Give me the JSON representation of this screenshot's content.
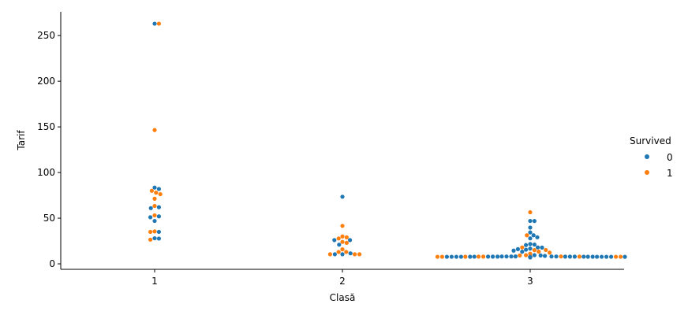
{
  "chart_data": {
    "type": "scatter",
    "style": "swarm",
    "xlabel": "Clasă",
    "ylabel": "Tarif",
    "categories": [
      "1",
      "2",
      "3"
    ],
    "ylim": [
      -6,
      276
    ],
    "yticks": [
      "0",
      "50",
      "100",
      "150",
      "200",
      "250"
    ],
    "ytick_values": [
      0,
      50,
      100,
      150,
      200,
      250
    ],
    "grid": false,
    "legend": {
      "title": "Survived",
      "placement": "right",
      "entries": [
        {
          "label": "0",
          "color": "#1f77b4"
        },
        {
          "label": "1",
          "color": "#ff7f0e"
        }
      ]
    },
    "series": [
      {
        "name": "0",
        "color": "#1f77b4",
        "points": [
          {
            "x": "1",
            "y": 263
          },
          {
            "x": "1",
            "y": 83.5
          },
          {
            "x": "1",
            "y": 82
          },
          {
            "x": "1",
            "y": 62
          },
          {
            "x": "1",
            "y": 61
          },
          {
            "x": "1",
            "y": 52
          },
          {
            "x": "1",
            "y": 51
          },
          {
            "x": "1",
            "y": 47
          },
          {
            "x": "1",
            "y": 35
          },
          {
            "x": "1",
            "y": 28
          },
          {
            "x": "1",
            "y": 27.7
          },
          {
            "x": "2",
            "y": 73.5
          },
          {
            "x": "2",
            "y": 26
          },
          {
            "x": "2",
            "y": 26
          },
          {
            "x": "2",
            "y": 21
          },
          {
            "x": "2",
            "y": 11.5
          },
          {
            "x": "2",
            "y": 10.5
          },
          {
            "x": "2",
            "y": 10.5
          },
          {
            "x": "3",
            "y": 47
          },
          {
            "x": "3",
            "y": 46.9
          },
          {
            "x": "3",
            "y": 39.7
          },
          {
            "x": "3",
            "y": 34.4
          },
          {
            "x": "3",
            "y": 31.3
          },
          {
            "x": "3",
            "y": 29.1
          },
          {
            "x": "3",
            "y": 27.9
          },
          {
            "x": "3",
            "y": 21.7
          },
          {
            "x": "3",
            "y": 21.1
          },
          {
            "x": "3",
            "y": 20.6
          },
          {
            "x": "3",
            "y": 18
          },
          {
            "x": "3",
            "y": 17.8
          },
          {
            "x": "3",
            "y": 16.7
          },
          {
            "x": "3",
            "y": 16.1
          },
          {
            "x": "3",
            "y": 15.5
          },
          {
            "x": "3",
            "y": 14.5
          },
          {
            "x": "3",
            "y": 13.3
          },
          {
            "x": "3",
            "y": 9.5
          },
          {
            "x": "3",
            "y": 9.2
          },
          {
            "x": "3",
            "y": 8.7
          },
          {
            "x": "3",
            "y": 8.1
          },
          {
            "x": "3",
            "y": 8.05
          },
          {
            "x": "3",
            "y": 8.05
          },
          {
            "x": "3",
            "y": 8.05
          },
          {
            "x": "3",
            "y": 8.05
          },
          {
            "x": "3",
            "y": 8.05
          },
          {
            "x": "3",
            "y": 7.9
          },
          {
            "x": "3",
            "y": 7.9
          },
          {
            "x": "3",
            "y": 7.9
          },
          {
            "x": "3",
            "y": 7.9
          },
          {
            "x": "3",
            "y": 7.9
          },
          {
            "x": "3",
            "y": 7.9
          },
          {
            "x": "3",
            "y": 7.85
          },
          {
            "x": "3",
            "y": 7.85
          },
          {
            "x": "3",
            "y": 7.8
          },
          {
            "x": "3",
            "y": 7.8
          },
          {
            "x": "3",
            "y": 7.8
          },
          {
            "x": "3",
            "y": 7.75
          },
          {
            "x": "3",
            "y": 7.75
          },
          {
            "x": "3",
            "y": 7.75
          },
          {
            "x": "3",
            "y": 7.75
          },
          {
            "x": "3",
            "y": 7.75
          },
          {
            "x": "3",
            "y": 7.75
          },
          {
            "x": "3",
            "y": 7.75
          },
          {
            "x": "3",
            "y": 7.75
          },
          {
            "x": "3",
            "y": 7.7
          },
          {
            "x": "3",
            "y": 7.7
          },
          {
            "x": "3",
            "y": 7.7
          },
          {
            "x": "3",
            "y": 7.65
          },
          {
            "x": "3",
            "y": 7.65
          },
          {
            "x": "3",
            "y": 7.6
          },
          {
            "x": "3",
            "y": 7.6
          },
          {
            "x": "3",
            "y": 7.55
          },
          {
            "x": "3",
            "y": 7.5
          },
          {
            "x": "3",
            "y": 7.5
          },
          {
            "x": "3",
            "y": 7.25
          },
          {
            "x": "3",
            "y": 7.25
          },
          {
            "x": "3",
            "y": 7.22
          },
          {
            "x": "3",
            "y": 7.05
          }
        ]
      },
      {
        "name": "1",
        "color": "#ff7f0e",
        "points": [
          {
            "x": "1",
            "y": 263
          },
          {
            "x": "1",
            "y": 146.5
          },
          {
            "x": "1",
            "y": 80
          },
          {
            "x": "1",
            "y": 78
          },
          {
            "x": "1",
            "y": 76.3
          },
          {
            "x": "1",
            "y": 71.3
          },
          {
            "x": "1",
            "y": 63.4
          },
          {
            "x": "1",
            "y": 53.1
          },
          {
            "x": "1",
            "y": 35.5
          },
          {
            "x": "1",
            "y": 35
          },
          {
            "x": "1",
            "y": 26.5
          },
          {
            "x": "2",
            "y": 41.6
          },
          {
            "x": "2",
            "y": 30
          },
          {
            "x": "2",
            "y": 29
          },
          {
            "x": "2",
            "y": 27.8
          },
          {
            "x": "2",
            "y": 24
          },
          {
            "x": "2",
            "y": 23
          },
          {
            "x": "2",
            "y": 15.9
          },
          {
            "x": "2",
            "y": 13
          },
          {
            "x": "2",
            "y": 13
          },
          {
            "x": "2",
            "y": 10.5
          },
          {
            "x": "2",
            "y": 10.5
          },
          {
            "x": "2",
            "y": 10.5
          },
          {
            "x": "3",
            "y": 56.5
          },
          {
            "x": "3",
            "y": 31.3
          },
          {
            "x": "3",
            "y": 18
          },
          {
            "x": "3",
            "y": 15.2
          },
          {
            "x": "3",
            "y": 15
          },
          {
            "x": "3",
            "y": 13.4
          },
          {
            "x": "3",
            "y": 12.3
          },
          {
            "x": "3",
            "y": 11.1
          },
          {
            "x": "3",
            "y": 9.5
          },
          {
            "x": "3",
            "y": 9.2
          },
          {
            "x": "3",
            "y": 8.05
          },
          {
            "x": "3",
            "y": 7.9
          },
          {
            "x": "3",
            "y": 7.9
          },
          {
            "x": "3",
            "y": 7.9
          },
          {
            "x": "3",
            "y": 7.8
          },
          {
            "x": "3",
            "y": 7.75
          },
          {
            "x": "3",
            "y": 7.75
          },
          {
            "x": "3",
            "y": 7.75
          },
          {
            "x": "3",
            "y": 7.75
          },
          {
            "x": "3",
            "y": 7.7
          },
          {
            "x": "3",
            "y": 7.65
          },
          {
            "x": "3",
            "y": 7.25
          },
          {
            "x": "3",
            "y": 7.22
          }
        ]
      }
    ]
  }
}
